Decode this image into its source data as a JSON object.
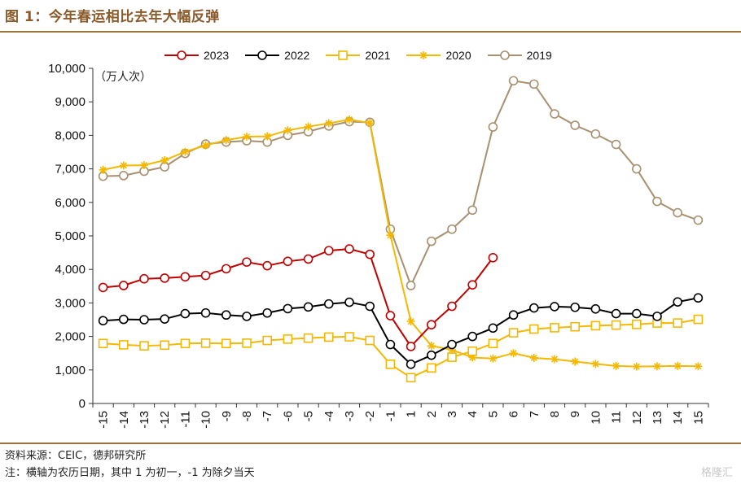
{
  "figure_title": "图 1：今年春运相比去年大幅反弹",
  "source_text": "资料来源：CEIC，德邦研究所",
  "note_text": "注：横轴为农历日期，其中 1 为初一，-1 为除夕当天",
  "watermark_text": "格隆汇",
  "unit_label": "（万人次）",
  "chart_data": {
    "type": "line",
    "title": "",
    "xlabel": "",
    "ylabel": "（万人次）",
    "ylim": [
      0,
      10000
    ],
    "yticks": [
      0,
      1000,
      2000,
      3000,
      4000,
      5000,
      6000,
      7000,
      8000,
      9000,
      10000
    ],
    "ytick_labels": [
      "0",
      "1,000",
      "2,000",
      "3,000",
      "4,000",
      "5,000",
      "6,000",
      "7,000",
      "8,000",
      "9,000",
      "10,000"
    ],
    "x": [
      -15,
      -14,
      -13,
      -12,
      -11,
      -10,
      -9,
      -8,
      -7,
      -6,
      -5,
      -4,
      -3,
      -2,
      -1,
      1,
      2,
      3,
      4,
      5,
      6,
      7,
      8,
      9,
      10,
      11,
      12,
      13,
      14,
      15
    ],
    "xtick_labels": [
      "-15",
      "-14",
      "-13",
      "-12",
      "-11",
      "-10",
      "-9",
      "-8",
      "-7",
      "-6",
      "-5",
      "-4",
      "-3",
      "-2",
      "-1",
      "1",
      "2",
      "3",
      "4",
      "5",
      "6",
      "7",
      "8",
      "9",
      "10",
      "11",
      "12",
      "13",
      "14",
      "15"
    ],
    "legend_position": "top",
    "grid": false,
    "series": [
      {
        "name": "2023",
        "color": "#c00000",
        "marker": "circle",
        "values": [
          3460,
          3520,
          3720,
          3740,
          3780,
          3820,
          4020,
          4220,
          4110,
          4240,
          4310,
          4560,
          4610,
          4450,
          2620,
          1700,
          2350,
          2900,
          3540,
          4350,
          null,
          null,
          null,
          null,
          null,
          null,
          null,
          null,
          null,
          null
        ]
      },
      {
        "name": "2022",
        "color": "#000000",
        "marker": "circle",
        "values": [
          2470,
          2510,
          2500,
          2520,
          2680,
          2700,
          2640,
          2600,
          2700,
          2830,
          2880,
          2970,
          3020,
          2900,
          1760,
          1170,
          1440,
          1760,
          2000,
          2250,
          2640,
          2850,
          2890,
          2870,
          2820,
          2680,
          2680,
          2600,
          3030,
          3150
        ]
      },
      {
        "name": "2021",
        "color": "#f5b800",
        "marker": "square",
        "values": [
          1790,
          1750,
          1720,
          1740,
          1790,
          1800,
          1790,
          1800,
          1880,
          1920,
          1950,
          1980,
          1990,
          1880,
          1170,
          770,
          1060,
          1380,
          1560,
          1790,
          2110,
          2220,
          2260,
          2290,
          2320,
          2340,
          2360,
          2400,
          2400,
          2510
        ]
      },
      {
        "name": "2020",
        "color": "#f5b800",
        "marker": "asterisk",
        "values": [
          6970,
          7100,
          7110,
          7260,
          7510,
          7700,
          7860,
          7960,
          7970,
          8150,
          8260,
          8360,
          8470,
          8370,
          5020,
          2450,
          1720,
          1600,
          1370,
          1340,
          1500,
          1360,
          1320,
          1250,
          1180,
          1120,
          1100,
          1110,
          1120,
          1110
        ]
      },
      {
        "name": "2019",
        "color": "#a89070",
        "marker": "circle",
        "values": [
          6780,
          6800,
          6930,
          7060,
          7460,
          7740,
          7800,
          7840,
          7800,
          8000,
          8110,
          8280,
          8410,
          8390,
          5200,
          3520,
          4840,
          5200,
          5770,
          8250,
          9630,
          9530,
          8640,
          8300,
          8040,
          7730,
          7000,
          6030,
          5690,
          5470
        ]
      }
    ]
  }
}
